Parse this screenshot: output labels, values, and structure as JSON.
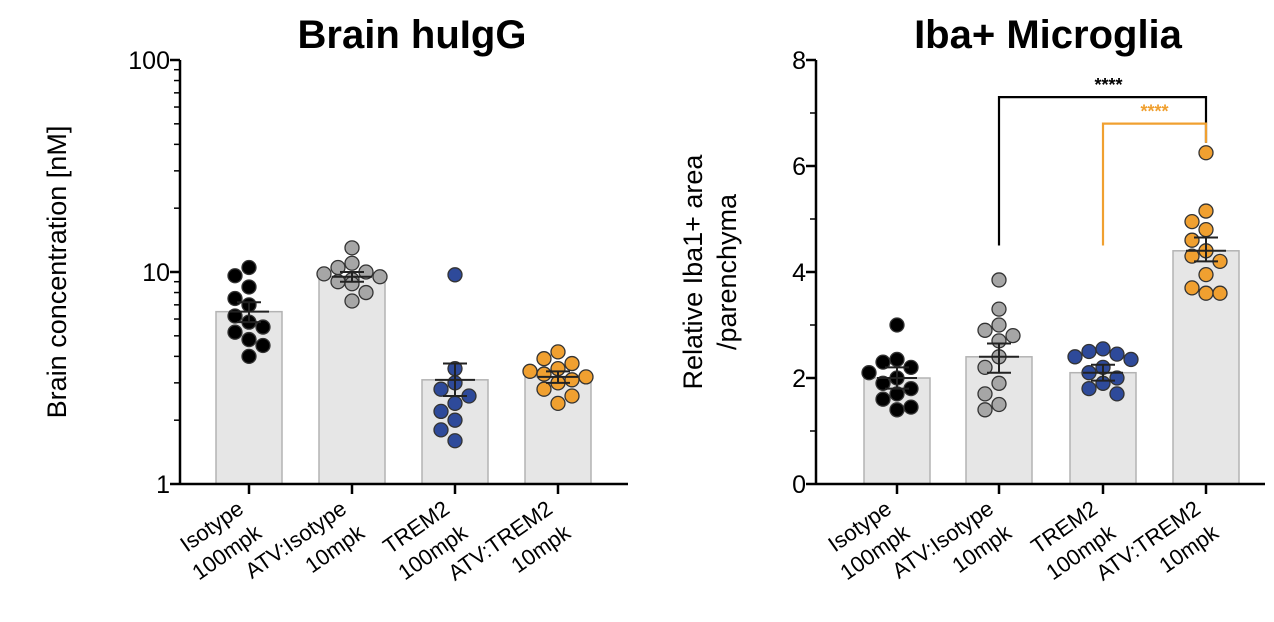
{
  "colors": {
    "bar_fill": "#e6e6e6",
    "bar_stroke": "#b3b3b3",
    "axis": "#000000",
    "point_stroke": "#333333",
    "series": [
      "#000000",
      "#a6a6a6",
      "#2e4a9a",
      "#f0a030"
    ]
  },
  "chart_data": [
    {
      "type": "bar",
      "scale": "log",
      "title": "Brain huIgG",
      "xlabel": "",
      "ylabel": "Brain concentration [nM]",
      "ylim": [
        1,
        100
      ],
      "yticks": [
        1,
        10,
        100
      ],
      "ytick_labels": [
        "1",
        "10",
        "100"
      ],
      "categories": [
        {
          "line1": "Isotype",
          "line2": "100mpk"
        },
        {
          "line1": "ATV:Isotype",
          "line2": "10mpk"
        },
        {
          "line1": "TREM2",
          "line2": "100mpk"
        },
        {
          "line1": "ATV:TREM2",
          "line2": "10mpk"
        }
      ],
      "values": [
        6.5,
        9.5,
        3.1,
        3.2
      ],
      "errors": [
        [
          5.8,
          7.2
        ],
        [
          9.0,
          10.0
        ],
        [
          2.6,
          3.7
        ],
        [
          3.0,
          3.4
        ]
      ],
      "points": [
        [
          10.5,
          9.6,
          8.5,
          7.5,
          7.0,
          6.2,
          5.8,
          5.5,
          5.2,
          4.8,
          4.5,
          4.0
        ],
        [
          13.0,
          11.0,
          10.5,
          10.0,
          9.8,
          9.5,
          9.2,
          9.0,
          8.8,
          8.0,
          7.3
        ],
        [
          9.7,
          3.5,
          3.0,
          2.8,
          2.6,
          2.4,
          2.2,
          2.0,
          1.8,
          1.6
        ],
        [
          4.2,
          3.9,
          3.7,
          3.5,
          3.4,
          3.3,
          3.2,
          3.1,
          3.0,
          2.8,
          2.6,
          2.4
        ]
      ]
    },
    {
      "type": "bar",
      "scale": "linear",
      "title": "Iba+ Microglia",
      "xlabel": "",
      "ylabel_line1": "Relative Iba1+ area",
      "ylabel_line2": "/parenchyma",
      "ylim": [
        0,
        8
      ],
      "yticks": [
        0,
        2,
        4,
        6,
        8
      ],
      "ytick_labels": [
        "0",
        "2",
        "4",
        "6",
        "8"
      ],
      "categories": [
        {
          "line1": "Isotype",
          "line2": "100mpk"
        },
        {
          "line1": "ATV:Isotype",
          "line2": "10mpk"
        },
        {
          "line1": "TREM2",
          "line2": "100mpk"
        },
        {
          "line1": "ATV:TREM2",
          "line2": "10mpk"
        }
      ],
      "values": [
        2.0,
        2.4,
        2.1,
        4.4
      ],
      "errors": [
        [
          1.8,
          2.2
        ],
        [
          2.1,
          2.65
        ],
        [
          1.95,
          2.25
        ],
        [
          4.2,
          4.65
        ]
      ],
      "points": [
        [
          3.0,
          2.35,
          2.3,
          2.2,
          2.1,
          2.0,
          1.9,
          1.8,
          1.7,
          1.6,
          1.45,
          1.4
        ],
        [
          3.85,
          3.3,
          3.0,
          2.9,
          2.8,
          2.7,
          2.4,
          2.2,
          1.9,
          1.7,
          1.5,
          1.4
        ],
        [
          2.55,
          2.5,
          2.45,
          2.4,
          2.35,
          2.2,
          2.1,
          2.0,
          1.9,
          1.8,
          1.7
        ],
        [
          6.25,
          5.15,
          4.95,
          4.8,
          4.6,
          4.4,
          4.3,
          4.2,
          3.95,
          3.7,
          3.6,
          3.6
        ]
      ],
      "significance": [
        {
          "from": 1,
          "to": 3,
          "label": "****",
          "color": "#000000",
          "y": 7.3,
          "start_y": 4.5
        },
        {
          "from": 2,
          "to": 3,
          "label": "****",
          "color": "#f0a030",
          "y": 6.8,
          "start_y": 4.5
        }
      ]
    }
  ]
}
